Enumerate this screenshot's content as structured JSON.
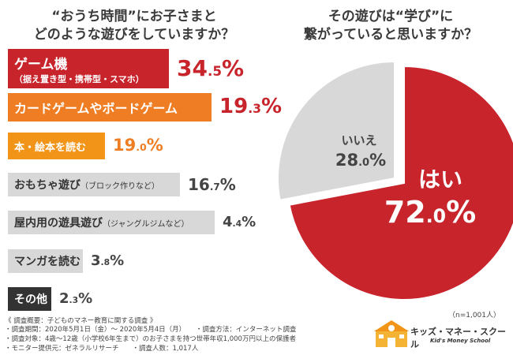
{
  "left_title": [
    "“おうち時間”にお子さまと",
    "どのような遊びをしていますか？"
  ],
  "right_title": [
    "その遊びは“学び”に",
    "繋がっていると思いますか？"
  ],
  "colors": {
    "red": "#c8242c",
    "orange": "#ef7d23",
    "gold": "#f29418",
    "grey": "#d8d8d8",
    "dark": "#333333"
  },
  "chart_data": [
    {
      "type": "bar",
      "orientation": "horizontal",
      "categories": [
        "ゲーム機",
        "カードゲームやボードゲーム",
        "本・絵本を読む",
        "おもちゃ遊び",
        "屋内用の遊具遊び",
        "マンガを読む",
        "その他"
      ],
      "category_notes": [
        "（据え置き型・携帯型・スマホ）",
        "",
        "",
        "（ブロック作りなど）",
        "（ジャングルジムなど）",
        "",
        ""
      ],
      "values": [
        34.5,
        19.3,
        19.0,
        16.7,
        4.4,
        3.8,
        2.3
      ],
      "labels": [
        {
          "int": "34",
          "dec": ".5",
          "unit": "%"
        },
        {
          "int": "19",
          "dec": ".3",
          "unit": "%"
        },
        {
          "int": "19",
          "dec": ".0",
          "unit": "%"
        },
        {
          "int": "16",
          "dec": ".7",
          "unit": "%"
        },
        {
          "int": "4",
          "dec": ".4",
          "unit": "%"
        },
        {
          "int": "3",
          "dec": ".8",
          "unit": "%"
        },
        {
          "int": "2",
          "dec": ".3",
          "unit": "%"
        }
      ]
    },
    {
      "type": "pie",
      "categories": [
        "はい",
        "いいえ"
      ],
      "values": [
        72.0,
        28.0
      ],
      "labels": [
        {
          "int": "72",
          "dec": ".0",
          "unit": "%"
        },
        {
          "int": "28",
          "dec": ".0",
          "unit": "%"
        }
      ],
      "sample": "（n=1,001人）"
    }
  ],
  "survey_notes": [
    "《 調査概要：子どものマネー教育に関する調査 》",
    "・調査期間：2020年5月1日（金）～ 2020年5月4日（月）　　・調査方法：インターネット調査",
    "・調査対象：4歳～12歳（小学校6年生まで）のお子さまを持つ世帯年収1,000万円以上の保護者",
    "・モニター提供元：ゼネラルリサーチ　　・調査人数：1,017人"
  ],
  "logo": {
    "name": "キッズ・マネー・スクール",
    "sub": "Kid's Money School",
    "icon": "school-building-icon"
  }
}
